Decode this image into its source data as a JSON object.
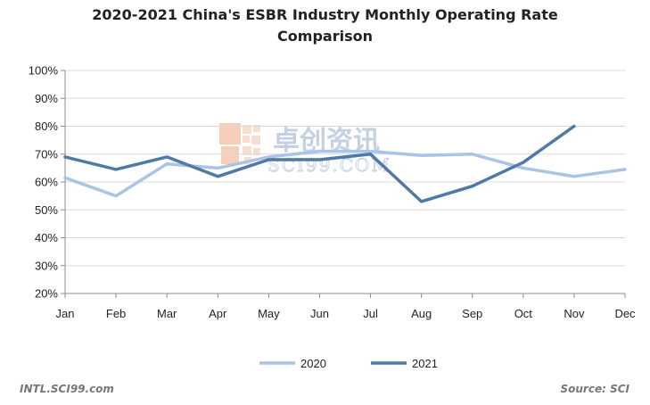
{
  "chart_data": {
    "type": "line",
    "title_lines": [
      "2020-2021  China's ESBR Industry Monthly Operating Rate",
      "Comparison"
    ],
    "categories": [
      "Jan",
      "Feb",
      "Mar",
      "Apr",
      "May",
      "Jun",
      "Jul",
      "Aug",
      "Sep",
      "Oct",
      "Nov",
      "Dec"
    ],
    "ylim": [
      20,
      100
    ],
    "yticks": [
      "20%",
      "30%",
      "40%",
      "50%",
      "60%",
      "70%",
      "80%",
      "90%",
      "100%"
    ],
    "yticks_values": [
      20,
      30,
      40,
      50,
      60,
      70,
      80,
      90,
      100
    ],
    "xlabel": "",
    "ylabel": "",
    "grid": true,
    "legend_position": "bottom-center",
    "series": [
      {
        "name": "2020",
        "color": "#a9c4e6",
        "values": [
          61.5,
          55,
          66.5,
          65,
          69,
          71,
          71,
          69.5,
          70,
          65,
          62,
          64.5
        ]
      },
      {
        "name": "2021",
        "color": "#4f7aa8",
        "values": [
          69,
          64.5,
          69,
          62,
          68,
          68,
          70,
          53,
          58.5,
          67,
          80,
          null
        ]
      }
    ]
  },
  "watermark": {
    "cn_text": "卓创资讯",
    "en_text": "SCI99.COM"
  },
  "footer": {
    "left": "INTL.SCI99.com",
    "right": "Source: SCI"
  }
}
